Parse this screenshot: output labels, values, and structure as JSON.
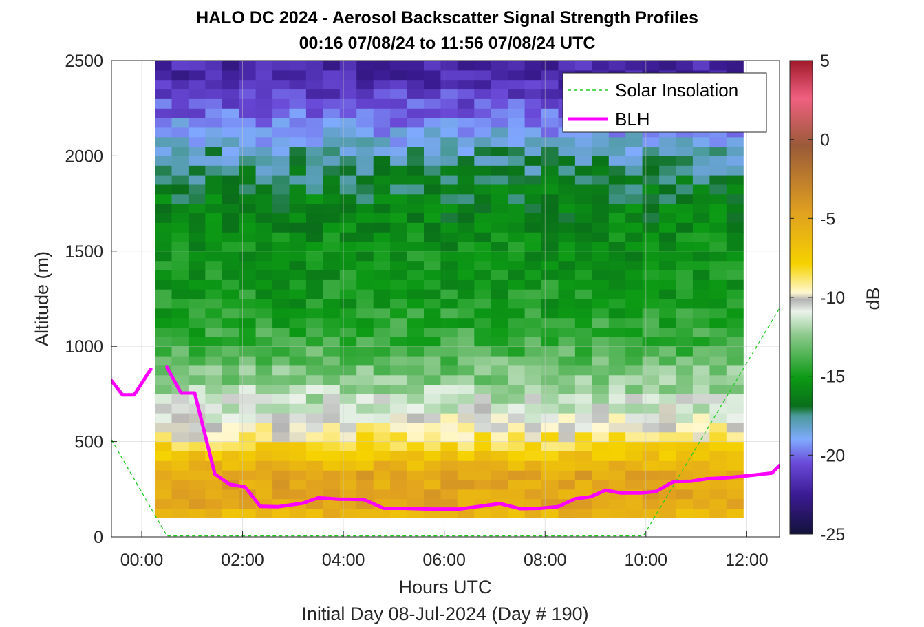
{
  "chart_data": {
    "type": "heatmap",
    "title": "HALO DC 2024 - Aerosol Backscatter Signal Strength Profiles",
    "subtitle": "00:16 07/08/24 to 11:56 07/08/24  UTC",
    "xlabel": "Hours UTC",
    "xlabel2": "Initial Day 08-Jul-2024 (Day # 190)",
    "ylabel": "Altitude (m)",
    "colorbar_label": "dB",
    "xlim": [
      -0.6,
      12.65
    ],
    "ylim": [
      0,
      2500
    ],
    "x_tick_values": [
      0,
      2,
      4,
      6,
      8,
      10,
      12
    ],
    "x_tick_labels": [
      "00:00",
      "02:00",
      "04:00",
      "06:00",
      "08:00",
      "10:00",
      "12:00"
    ],
    "y_tick_values": [
      0,
      500,
      1000,
      1500,
      2000,
      2500
    ],
    "y_tick_labels": [
      "0",
      "500",
      "1000",
      "1500",
      "2000",
      "2500"
    ],
    "colorbar_range": [
      -25,
      5
    ],
    "colorbar_tick_values": [
      5,
      0,
      -5,
      -10,
      -15,
      -20,
      -25
    ],
    "colorbar_tick_labels": [
      "5",
      "0",
      "-5",
      "-10",
      "-15",
      "-20",
      "-25"
    ],
    "grid": true,
    "legend_position": "top-right",
    "legend": [
      {
        "label": "Solar Insolation",
        "color": "#22cc22",
        "style": "dashed"
      },
      {
        "label": "BLH",
        "color": "#ff00ff",
        "style": "solid"
      }
    ],
    "heatmap": {
      "x_start": 0.26,
      "x_end": 11.93,
      "n_cols": 35,
      "altitudes": [
        100,
        150,
        200,
        250,
        300,
        350,
        400,
        450,
        500,
        550,
        600,
        650,
        700,
        750,
        800,
        850,
        900,
        950,
        1000,
        1050,
        1100,
        1150,
        1200,
        1250,
        1300,
        1350,
        1400,
        1450,
        1500,
        1550,
        1600,
        1650,
        1700,
        1750,
        1800,
        1850,
        1900,
        1950,
        2000,
        2050,
        2100,
        2150,
        2200,
        2250,
        2300,
        2350,
        2400,
        2450
      ],
      "profile_description_db": {
        "100": -6,
        "150": -5,
        "200": -5,
        "300": -5,
        "400": -7,
        "500": -9,
        "600": -10.5,
        "700": -11.5,
        "800": -12.5,
        "1000": -14,
        "1200": -15,
        "1500": -15.5,
        "1800": -16.5,
        "2000": -18,
        "2200": -20,
        "2400": -22
      }
    },
    "series": [
      {
        "name": "BLH",
        "color": "#ff00ff",
        "segments": [
          [
            [
              -0.6,
              820
            ],
            [
              -0.38,
              745
            ],
            [
              -0.15,
              745
            ],
            [
              0.18,
              880
            ]
          ],
          [
            [
              0.5,
              890
            ],
            [
              0.78,
              755
            ],
            [
              1.05,
              755
            ],
            [
              1.45,
              330
            ],
            [
              1.75,
              275
            ],
            [
              2.05,
              262
            ],
            [
              2.35,
              160
            ],
            [
              2.7,
              158
            ],
            [
              3.2,
              177
            ],
            [
              3.5,
              205
            ],
            [
              3.9,
              198
            ],
            [
              4.4,
              196
            ],
            [
              4.8,
              150
            ],
            [
              5.2,
              150
            ],
            [
              5.7,
              146
            ],
            [
              6.3,
              146
            ],
            [
              6.7,
              160
            ],
            [
              7.1,
              175
            ],
            [
              7.5,
              148
            ],
            [
              7.9,
              150
            ],
            [
              8.25,
              158
            ],
            [
              8.6,
              200
            ],
            [
              8.9,
              210
            ],
            [
              9.2,
              245
            ],
            [
              9.5,
              230
            ],
            [
              9.9,
              230
            ],
            [
              10.2,
              238
            ],
            [
              10.55,
              290
            ],
            [
              10.9,
              292
            ],
            [
              11.2,
              305
            ],
            [
              11.6,
              310
            ],
            [
              12.0,
              320
            ],
            [
              12.5,
              335
            ],
            [
              12.65,
              375
            ]
          ]
        ]
      },
      {
        "name": "Solar Insolation",
        "color": "#22cc22",
        "points": [
          [
            -0.6,
            510
          ],
          [
            0.5,
            5
          ],
          [
            9.95,
            5
          ],
          [
            12.65,
            1200
          ]
        ]
      }
    ]
  }
}
